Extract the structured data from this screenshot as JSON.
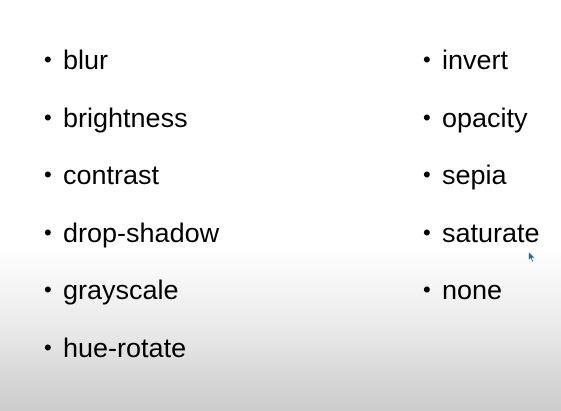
{
  "slide": {
    "bullet_symbol": "•",
    "left_column": [
      {
        "label": "blur"
      },
      {
        "label": "brightness"
      },
      {
        "label": "contrast"
      },
      {
        "label": "drop-shadow"
      },
      {
        "label": "grayscale"
      },
      {
        "label": "hue-rotate"
      }
    ],
    "right_column": [
      {
        "label": "invert"
      },
      {
        "label": "opacity"
      },
      {
        "label": "sepia"
      },
      {
        "label": "saturate"
      },
      {
        "label": "none"
      }
    ]
  },
  "colors": {
    "text": "#000000",
    "background_top": "#ffffff",
    "background_bottom": "#cdcdcd",
    "cursor": "#1f6f9a"
  },
  "icons": {
    "cursor": "mouse-pointer-icon"
  }
}
